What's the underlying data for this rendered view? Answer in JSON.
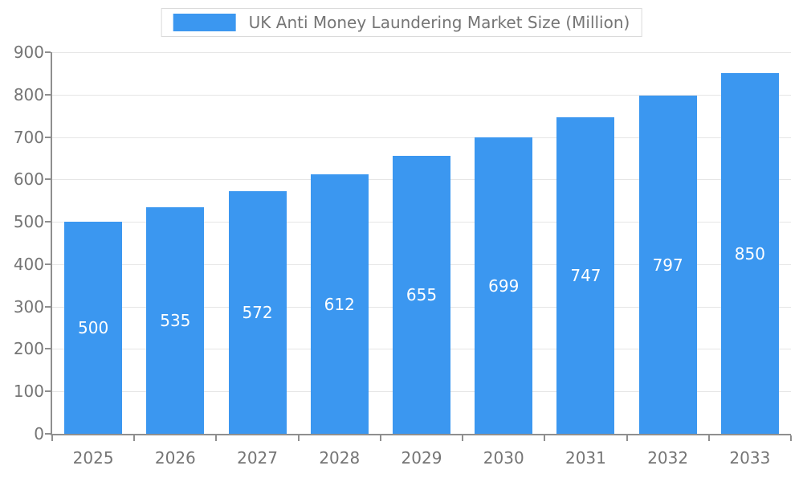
{
  "chart_data": {
    "type": "bar",
    "title": "UK Anti Money Laundering Market Size (Million)",
    "categories": [
      "2025",
      "2026",
      "2027",
      "2028",
      "2029",
      "2030",
      "2031",
      "2032",
      "2033"
    ],
    "values": [
      500,
      535,
      572,
      612,
      655,
      699,
      747,
      797,
      850
    ],
    "xlabel": "",
    "ylabel": "",
    "ylim": [
      0,
      900
    ],
    "yticks": [
      0,
      100,
      200,
      300,
      400,
      500,
      600,
      700,
      800,
      900
    ],
    "grid": true,
    "legend_position": "top-center",
    "value_labels": "inside-center",
    "colors": {
      "bar": "#3B97F0",
      "bar_label": "#FFFFFF",
      "axis_text": "#757575",
      "axis_line": "#8F8F8F",
      "gridline": "#E6E6E6",
      "background": "#FFFFFF",
      "legend_border": "#DADADA"
    }
  }
}
